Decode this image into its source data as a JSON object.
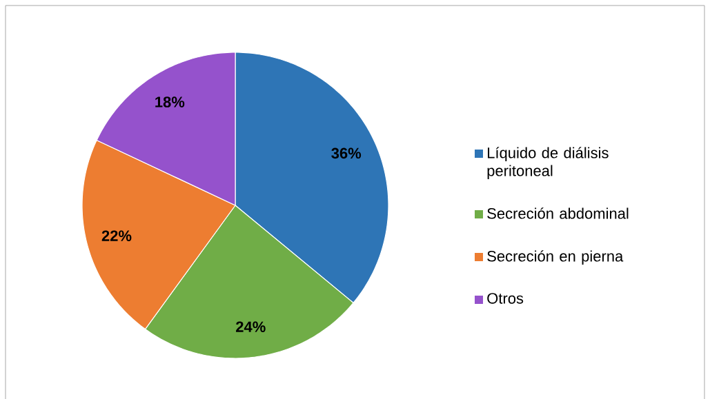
{
  "chart_data": {
    "type": "pie",
    "categories": [
      "Líquido de diálisis peritoneal",
      "Secreción abdominal",
      "Secreción en pierna",
      "Otros"
    ],
    "values": [
      36,
      24,
      22,
      18
    ],
    "colors": [
      "#2e75b6",
      "#70ad47",
      "#ed7d31",
      "#9552cc"
    ],
    "value_labels": [
      "36%",
      "24%",
      "22%",
      "18%"
    ],
    "legend": "right"
  }
}
